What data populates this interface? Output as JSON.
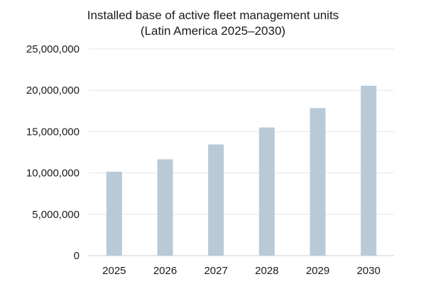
{
  "chart_data": {
    "type": "bar",
    "title": "Installed base of active fleet management units",
    "subtitle": "(Latin America 2025–2030)",
    "xlabel": "",
    "ylabel": "",
    "categories": [
      "2025",
      "2026",
      "2027",
      "2028",
      "2029",
      "2030"
    ],
    "values": [
      10150000,
      11650000,
      13450000,
      15500000,
      17850000,
      20550000
    ],
    "ylim": [
      0,
      25000000
    ],
    "yticks": [
      0,
      5000000,
      10000000,
      15000000,
      20000000,
      25000000
    ],
    "ytick_labels": [
      "0",
      "5,000,000",
      "10,000,000",
      "15,000,000",
      "20,000,000",
      "25,000,000"
    ],
    "grid": true,
    "legend": "none",
    "bar_color": "#b8c9d8",
    "grid_color": "#e6e6e6"
  }
}
